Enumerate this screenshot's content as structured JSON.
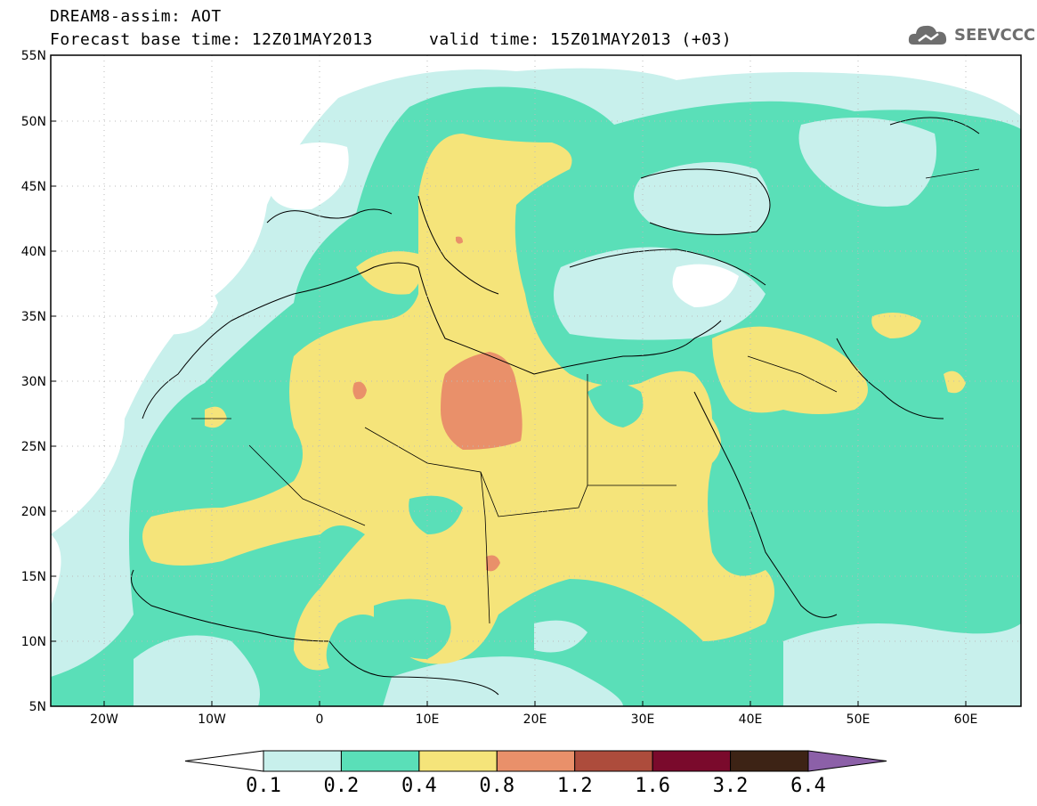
{
  "header": {
    "line1": "DREAM8-assim: AOT",
    "line2_left": "Forecast base time: 12Z01MAY2013",
    "line2_right": "valid time: 15Z01MAY2013 (+03)"
  },
  "logo": {
    "text": "SEEVCCC",
    "icon": "cloud-icon"
  },
  "map": {
    "lat_labels": [
      "55N",
      "50N",
      "45N",
      "40N",
      "35N",
      "30N",
      "25N",
      "20N",
      "15N",
      "10N",
      "5N"
    ],
    "lon_labels": [
      "20W",
      "10W",
      "0",
      "10E",
      "20E",
      "30E",
      "40E",
      "50E",
      "60E"
    ],
    "extent": {
      "lon": [
        -25,
        65
      ],
      "lat": [
        5,
        55
      ]
    }
  },
  "legend": {
    "colors": [
      "#ffffff",
      "#c8f0ec",
      "#5adfb8",
      "#f5e47a",
      "#e9906a",
      "#ad4c3c",
      "#7a0a2c",
      "#3d2315",
      "#8c60a8"
    ],
    "labels": [
      "0.1",
      "0.2",
      "0.4",
      "0.8",
      "1.2",
      "1.6",
      "3.2",
      "6.4"
    ]
  }
}
